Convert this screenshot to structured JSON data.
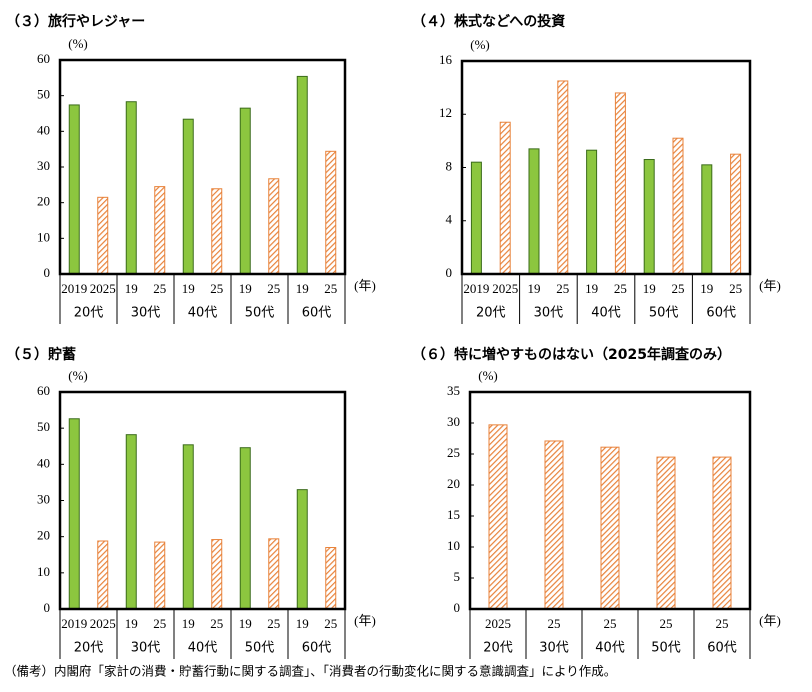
{
  "chart_data": [
    {
      "type": "bar",
      "title": "（３）旅行やレジャー",
      "y_unit": "(%)",
      "x_unit": "(年)",
      "categories": [
        "20代",
        "30代",
        "40代",
        "50代",
        "60代"
      ],
      "sub_labels": [
        [
          "2019",
          "2025"
        ],
        [
          "19",
          "25"
        ],
        [
          "19",
          "25"
        ],
        [
          "19",
          "25"
        ],
        [
          "19",
          "25"
        ]
      ],
      "series": [
        {
          "color": "#8cc63f",
          "border": "#3a6b1a",
          "pattern": "solid",
          "values": [
            47.4,
            48.3,
            43.4,
            46.5,
            55.4
          ]
        },
        {
          "color": "#e8823a",
          "border": "#e8823a",
          "pattern": "hatch",
          "values": [
            21.5,
            24.5,
            23.9,
            26.7,
            34.4
          ]
        }
      ],
      "ylim": [
        0,
        60
      ],
      "yticks": [
        0,
        10,
        20,
        30,
        40,
        50,
        60
      ]
    },
    {
      "type": "bar",
      "title": "（４）株式などへの投資",
      "y_unit": "(%)",
      "x_unit": "(年)",
      "categories": [
        "20代",
        "30代",
        "40代",
        "50代",
        "60代"
      ],
      "sub_labels": [
        [
          "2019",
          "2025"
        ],
        [
          "19",
          "25"
        ],
        [
          "19",
          "25"
        ],
        [
          "19",
          "25"
        ],
        [
          "19",
          "25"
        ]
      ],
      "series": [
        {
          "color": "#8cc63f",
          "border": "#3a6b1a",
          "pattern": "solid",
          "values": [
            8.4,
            9.4,
            9.3,
            8.6,
            8.2
          ]
        },
        {
          "color": "#e8823a",
          "border": "#e8823a",
          "pattern": "hatch",
          "values": [
            11.4,
            14.5,
            13.6,
            10.2,
            9.0
          ]
        }
      ],
      "ylim": [
        0,
        16
      ],
      "yticks": [
        0,
        4,
        8,
        12,
        16
      ]
    },
    {
      "type": "bar",
      "title": "（５）貯蓄",
      "y_unit": "(%)",
      "x_unit": "(年)",
      "categories": [
        "20代",
        "30代",
        "40代",
        "50代",
        "60代"
      ],
      "sub_labels": [
        [
          "2019",
          "2025"
        ],
        [
          "19",
          "25"
        ],
        [
          "19",
          "25"
        ],
        [
          "19",
          "25"
        ],
        [
          "19",
          "25"
        ]
      ],
      "series": [
        {
          "color": "#8cc63f",
          "border": "#3a6b1a",
          "pattern": "solid",
          "values": [
            52.6,
            48.2,
            45.4,
            44.6,
            33.0
          ]
        },
        {
          "color": "#e8823a",
          "border": "#e8823a",
          "pattern": "hatch",
          "values": [
            18.8,
            18.5,
            19.2,
            19.4,
            17.0
          ]
        }
      ],
      "ylim": [
        0,
        60
      ],
      "yticks": [
        0,
        10,
        20,
        30,
        40,
        50,
        60
      ]
    },
    {
      "type": "bar",
      "title": "（６）特に増やすものはない（2025年調査のみ）",
      "y_unit": "(%)",
      "x_unit": "(年)",
      "categories": [
        "20代",
        "30代",
        "40代",
        "50代",
        "60代"
      ],
      "sub_labels": [
        [
          "2025"
        ],
        [
          "25"
        ],
        [
          "25"
        ],
        [
          "25"
        ],
        [
          "25"
        ]
      ],
      "series": [
        {
          "color": "#e8823a",
          "border": "#e8823a",
          "pattern": "hatch",
          "values": [
            29.7,
            27.1,
            26.1,
            24.5,
            24.5
          ]
        }
      ],
      "ylim": [
        0,
        35
      ],
      "yticks": [
        0,
        5,
        10,
        15,
        20,
        25,
        30,
        35
      ]
    }
  ],
  "note": "（備考）内閣府「家計の消費・貯蓄行動に関する調査」、「消費者の行動変化に関する意識調査」により作成。"
}
